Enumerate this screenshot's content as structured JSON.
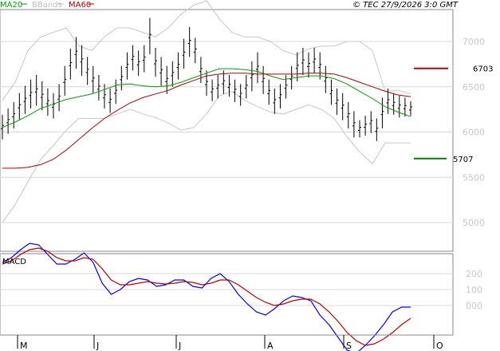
{
  "legend": {
    "ma20": "MA20",
    "bbands": "BBands",
    "ma60": "MA60"
  },
  "credit": "© TEC 27/9/2026 3:0 GMT",
  "macd_title": "MACD",
  "colors": {
    "ma20": "#00a000",
    "ma60": "#b00000",
    "bbands": "#c8c8c8",
    "price": "#000000",
    "macd": "#0000ff",
    "signal": "#c00000",
    "grid": "#d8d8d8",
    "resistance": "#c00000",
    "support": "#008000"
  },
  "chart_data": [
    {
      "type": "line",
      "name": "price-panel",
      "x_labels": [
        "M",
        "J",
        "J",
        "A",
        "S",
        "O"
      ],
      "y_ticks": [
        "7000",
        "6500",
        "6000",
        "5500",
        "5000"
      ],
      "ylim": [
        4700,
        7400
      ],
      "levels": [
        {
          "label": "6703",
          "value": 6703,
          "kind": "resistance"
        },
        {
          "label": "5707",
          "value": 5707,
          "kind": "support"
        }
      ],
      "series": [
        {
          "name": "MA20",
          "values": [
            6050,
            6110,
            6180,
            6260,
            6310,
            6360,
            6390,
            6420,
            6470,
            6520,
            6530,
            6510,
            6500,
            6510,
            6550,
            6600,
            6650,
            6700,
            6700,
            6690,
            6670,
            6620,
            6580,
            6600,
            6620,
            6620,
            6590,
            6530,
            6450,
            6370,
            6280,
            6220,
            6170
          ]
        },
        {
          "name": "MA60",
          "values": [
            5600,
            5600,
            5610,
            5640,
            5700,
            5800,
            5920,
            6040,
            6150,
            6240,
            6320,
            6380,
            6420,
            6460,
            6520,
            6570,
            6620,
            6640,
            6650,
            6650,
            6640,
            6640,
            6640,
            6640,
            6650,
            6650,
            6640,
            6600,
            6550,
            6500,
            6450,
            6410,
            6390
          ]
        },
        {
          "name": "BBands upper",
          "values": [
            6350,
            6550,
            6900,
            7050,
            7100,
            7150,
            6950,
            6900,
            7050,
            7150,
            7150,
            7100,
            7050,
            7150,
            7300,
            7400,
            7450,
            7250,
            7100,
            7050,
            7050,
            7000,
            6900,
            6850,
            6920,
            6950,
            6950,
            7000,
            7000,
            6900,
            6450,
            6460,
            6420
          ]
        },
        {
          "name": "BBands lower",
          "values": [
            5000,
            5200,
            5450,
            5700,
            5850,
            6020,
            6150,
            6150,
            6150,
            6200,
            6250,
            6200,
            6160,
            6100,
            6020,
            6050,
            6200,
            6400,
            6450,
            6350,
            6280,
            6220,
            6200,
            6250,
            6300,
            6250,
            6150,
            5950,
            5780,
            5650,
            5880,
            5880,
            5880
          ]
        }
      ],
      "candles": [
        {
          "h": 6190,
          "l": 5920
        },
        {
          "h": 6260,
          "l": 5980
        },
        {
          "h": 6330,
          "l": 6040
        },
        {
          "h": 6430,
          "l": 6140
        },
        {
          "h": 6510,
          "l": 6200
        },
        {
          "h": 6580,
          "l": 6260
        },
        {
          "h": 6630,
          "l": 6290
        },
        {
          "h": 6560,
          "l": 6240
        },
        {
          "h": 6480,
          "l": 6180
        },
        {
          "h": 6430,
          "l": 6150
        },
        {
          "h": 6530,
          "l": 6230
        },
        {
          "h": 6730,
          "l": 6400
        },
        {
          "h": 6920,
          "l": 6580
        },
        {
          "h": 7050,
          "l": 6700
        },
        {
          "h": 6960,
          "l": 6620
        },
        {
          "h": 6830,
          "l": 6520
        },
        {
          "h": 6730,
          "l": 6430
        },
        {
          "h": 6630,
          "l": 6350
        },
        {
          "h": 6530,
          "l": 6260
        },
        {
          "h": 6480,
          "l": 6210
        },
        {
          "h": 6580,
          "l": 6310
        },
        {
          "h": 6730,
          "l": 6460
        },
        {
          "h": 6880,
          "l": 6580
        },
        {
          "h": 6960,
          "l": 6680
        },
        {
          "h": 6900,
          "l": 6620
        },
        {
          "h": 6960,
          "l": 6660
        },
        {
          "h": 7260,
          "l": 6860
        },
        {
          "h": 6930,
          "l": 6610
        },
        {
          "h": 6830,
          "l": 6510
        },
        {
          "h": 6730,
          "l": 6420
        },
        {
          "h": 6780,
          "l": 6500
        },
        {
          "h": 6880,
          "l": 6580
        },
        {
          "h": 7030,
          "l": 6700
        },
        {
          "h": 7160,
          "l": 6830
        },
        {
          "h": 7040,
          "l": 6760
        },
        {
          "h": 6830,
          "l": 6540
        },
        {
          "h": 6680,
          "l": 6400
        },
        {
          "h": 6580,
          "l": 6340
        },
        {
          "h": 6630,
          "l": 6370
        },
        {
          "h": 6680,
          "l": 6420
        },
        {
          "h": 6630,
          "l": 6390
        },
        {
          "h": 6580,
          "l": 6330
        },
        {
          "h": 6530,
          "l": 6290
        },
        {
          "h": 6630,
          "l": 6370
        },
        {
          "h": 6780,
          "l": 6450
        },
        {
          "h": 6880,
          "l": 6540
        },
        {
          "h": 6730,
          "l": 6420
        },
        {
          "h": 6580,
          "l": 6300
        },
        {
          "h": 6480,
          "l": 6200
        },
        {
          "h": 6530,
          "l": 6260
        },
        {
          "h": 6630,
          "l": 6370
        },
        {
          "h": 6730,
          "l": 6470
        },
        {
          "h": 6880,
          "l": 6560
        },
        {
          "h": 6930,
          "l": 6630
        },
        {
          "h": 6880,
          "l": 6600
        },
        {
          "h": 6930,
          "l": 6650
        },
        {
          "h": 6880,
          "l": 6580
        },
        {
          "h": 6730,
          "l": 6430
        },
        {
          "h": 6580,
          "l": 6300
        },
        {
          "h": 6480,
          "l": 6190
        },
        {
          "h": 6430,
          "l": 6130
        },
        {
          "h": 6330,
          "l": 6040
        },
        {
          "h": 6230,
          "l": 5940
        },
        {
          "h": 6130,
          "l": 5940
        },
        {
          "h": 6180,
          "l": 5960
        },
        {
          "h": 6230,
          "l": 5990
        },
        {
          "h": 6150,
          "l": 5900
        },
        {
          "h": 6380,
          "l": 6040
        },
        {
          "h": 6480,
          "l": 6200
        },
        {
          "h": 6430,
          "l": 6190
        },
        {
          "h": 6400,
          "l": 6160
        },
        {
          "h": 6380,
          "l": 6170
        },
        {
          "h": 6340,
          "l": 6180
        }
      ]
    },
    {
      "type": "line",
      "name": "macd-panel",
      "y_ticks": [
        "200",
        "100",
        "000"
      ],
      "ylim": [
        -400,
        500
      ],
      "series": [
        {
          "name": "MACD",
          "values": [
            270,
            300,
            350,
            390,
            380,
            320,
            260,
            260,
            290,
            330,
            270,
            140,
            70,
            100,
            150,
            170,
            160,
            120,
            130,
            160,
            160,
            120,
            110,
            170,
            200,
            150,
            70,
            10,
            -40,
            -60,
            -20,
            30,
            60,
            50,
            30,
            -60,
            -120,
            -200,
            -280,
            -300,
            -250,
            -190,
            -120,
            -40,
            -10,
            -10
          ]
        },
        {
          "name": "Signal",
          "values": [
            260,
            280,
            320,
            350,
            360,
            340,
            300,
            280,
            280,
            300,
            290,
            230,
            160,
            130,
            130,
            140,
            150,
            140,
            135,
            140,
            150,
            145,
            130,
            140,
            160,
            160,
            130,
            90,
            50,
            20,
            0,
            10,
            30,
            40,
            40,
            10,
            -40,
            -100,
            -170,
            -220,
            -250,
            -240,
            -210,
            -170,
            -120,
            -80
          ]
        }
      ]
    }
  ]
}
